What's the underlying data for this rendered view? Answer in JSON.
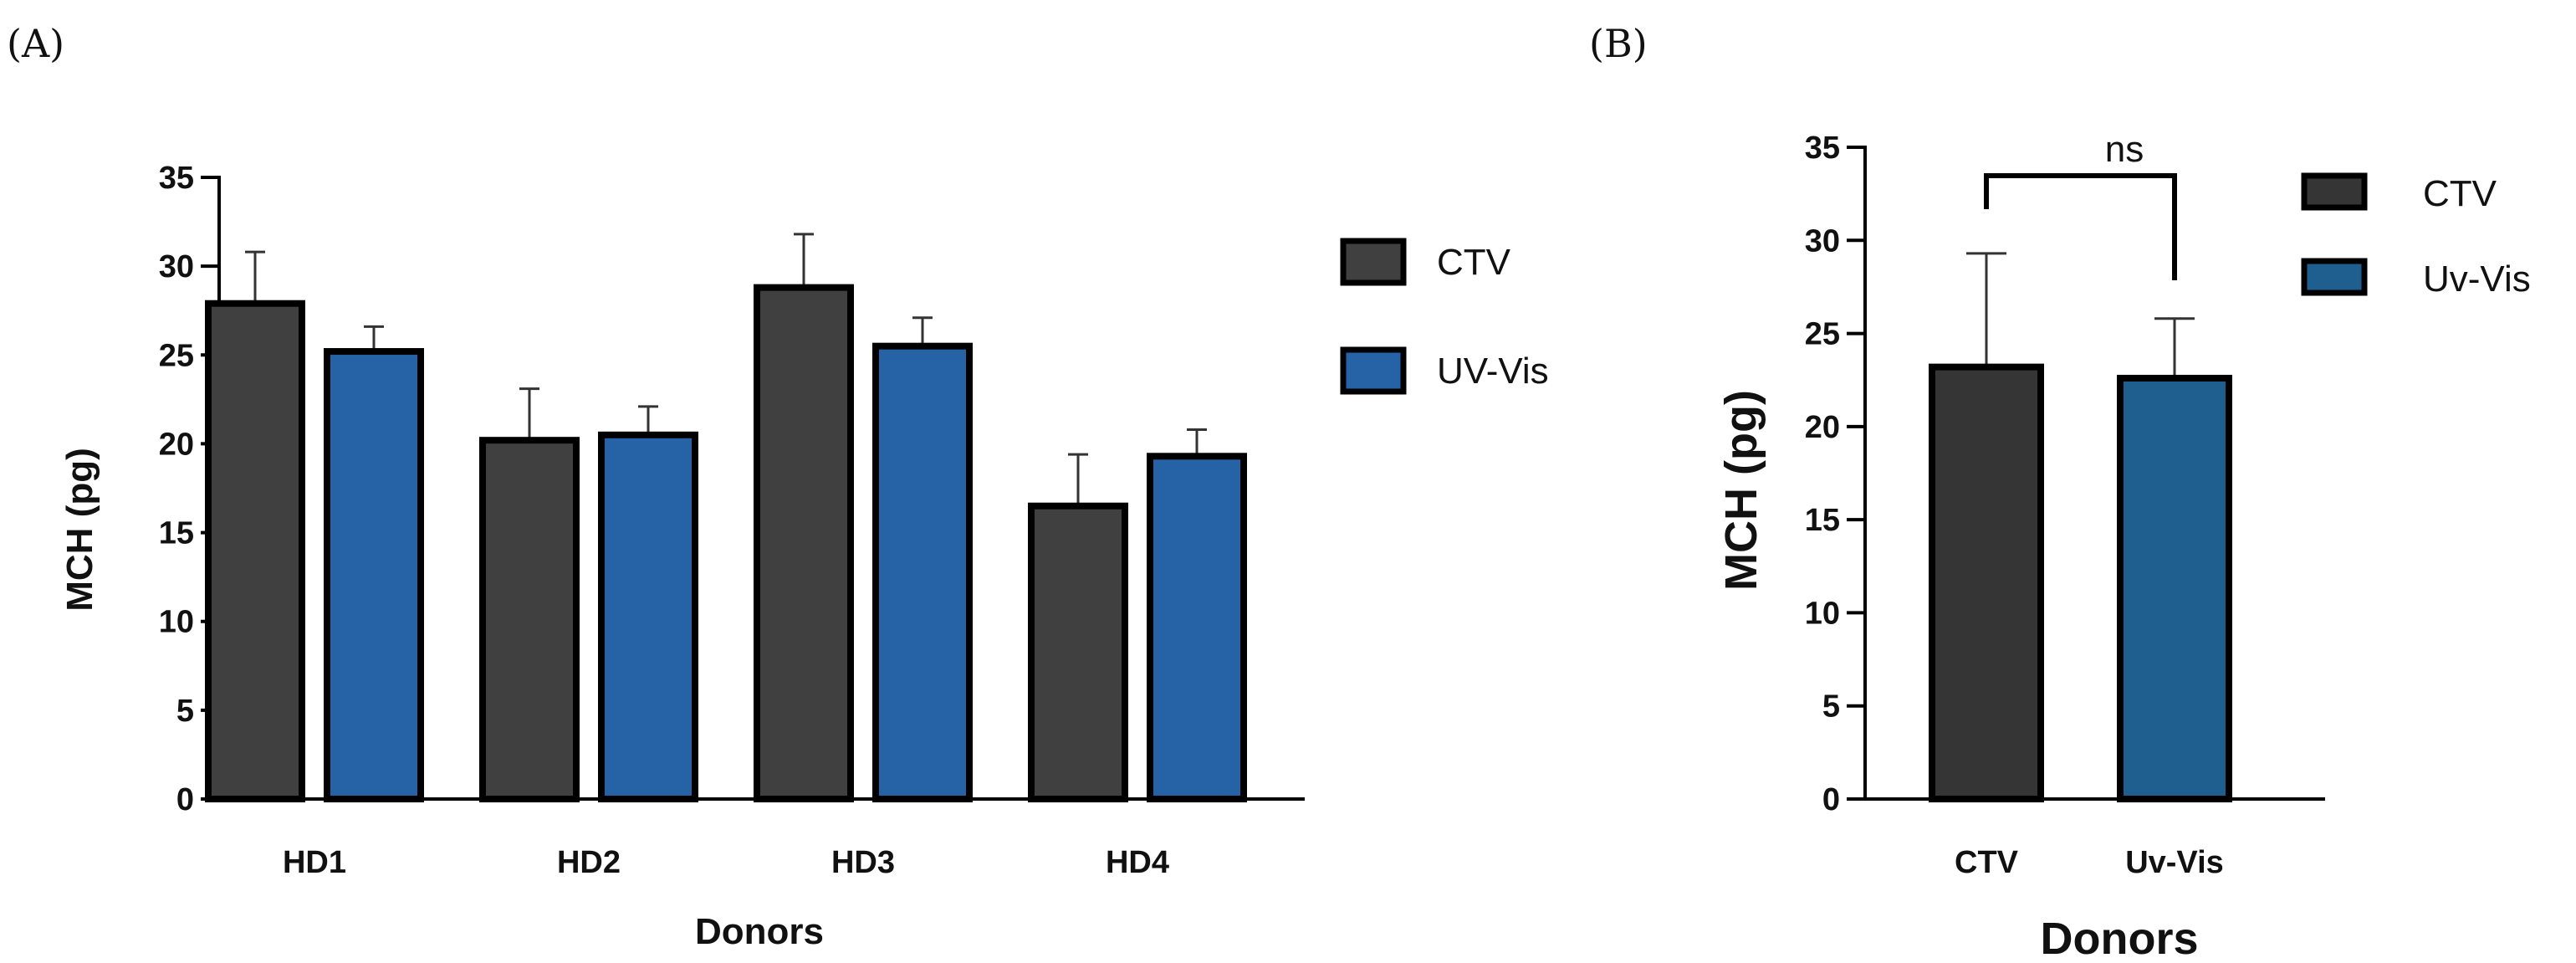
{
  "panels": {
    "a": {
      "label": "(A)"
    },
    "b": {
      "label": "(B)"
    }
  },
  "colors": {
    "ctv_a": "#404040",
    "uv_a": "#2563a6",
    "ctv_b": "#353535",
    "uv_b": "#1f5f8f",
    "outline": "#000000"
  },
  "chart_data": [
    {
      "type": "bar",
      "title": "",
      "xlabel": "Donors",
      "ylabel": "MCH (pg)",
      "ylim": [
        0,
        35
      ],
      "yticks": [
        0,
        5,
        10,
        15,
        20,
        25,
        30,
        35
      ],
      "categories": [
        "HD1",
        "HD2",
        "HD3",
        "HD4"
      ],
      "series": [
        {
          "name": "CTV",
          "values": [
            27.9,
            20.2,
            28.8,
            16.5
          ],
          "errors": [
            2.9,
            2.9,
            3.0,
            2.9
          ]
        },
        {
          "name": "UV-Vis",
          "values": [
            25.2,
            20.5,
            25.5,
            19.3
          ],
          "errors": [
            1.4,
            1.6,
            1.6,
            1.5
          ]
        }
      ],
      "legend": "right"
    },
    {
      "type": "bar",
      "title": "",
      "xlabel": "Donors",
      "ylabel": "MCH (pg)",
      "ylim": [
        0,
        35
      ],
      "yticks": [
        0,
        5,
        10,
        15,
        20,
        25,
        30,
        35
      ],
      "categories": [
        "CTV",
        "Uv-Vis"
      ],
      "series": [
        {
          "name": "MCH",
          "values": [
            23.2,
            22.6
          ],
          "errors": [
            6.1,
            3.2
          ]
        }
      ],
      "legend_entries": [
        "CTV",
        "Uv-Vis"
      ],
      "annotation": "ns",
      "legend": "right"
    }
  ]
}
